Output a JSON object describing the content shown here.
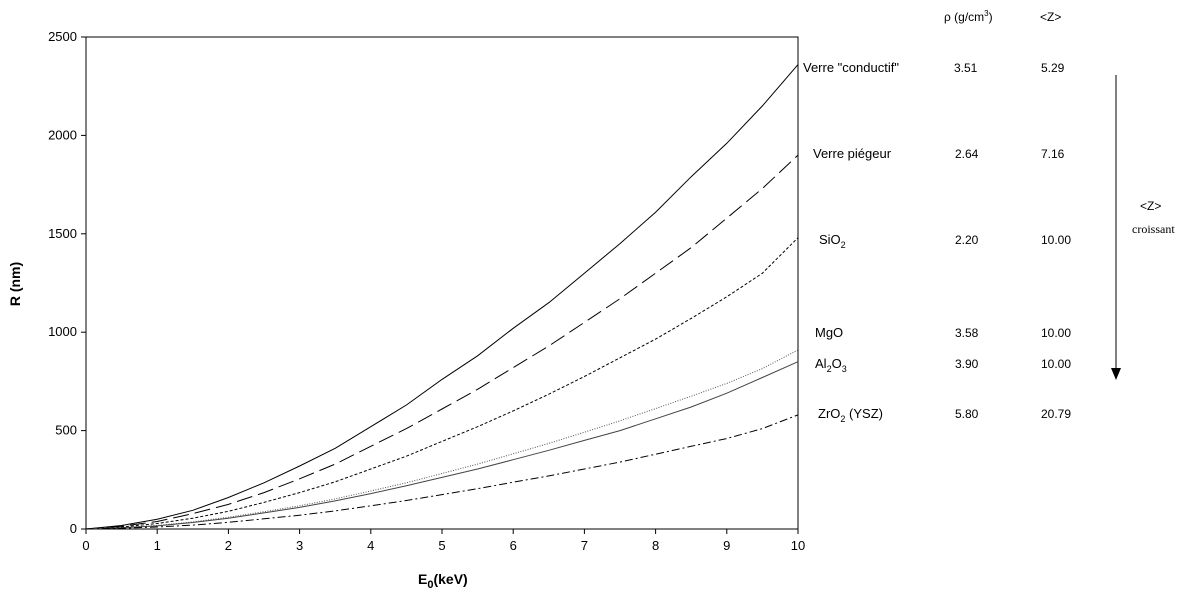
{
  "chart_data": {
    "type": "line",
    "xlabel": "E",
    "xlabel_sub": "0",
    "xlabel_unit": "(keV)",
    "ylabel": "R (nm)",
    "xlim": [
      0,
      10
    ],
    "ylim": [
      0,
      2500
    ],
    "x_ticks": [
      "0",
      "1",
      "2",
      "3",
      "4",
      "5",
      "6",
      "7",
      "8",
      "9",
      "10"
    ],
    "y_ticks": [
      "0",
      "500",
      "1000",
      "1500",
      "2000",
      "2500"
    ],
    "grid": false,
    "x": [
      0,
      0.5,
      1,
      1.5,
      2,
      2.5,
      3,
      3.5,
      4,
      4.5,
      5,
      5.5,
      6,
      6.5,
      7,
      7.5,
      8,
      8.5,
      9,
      9.5,
      10
    ],
    "series": [
      {
        "name": "Verre \"conductif\"",
        "dash": "solid",
        "values": [
          0,
          18,
          50,
          95,
          160,
          235,
          320,
          410,
          520,
          630,
          760,
          880,
          1020,
          1150,
          1300,
          1450,
          1610,
          1790,
          1960,
          2150,
          2360
        ]
      },
      {
        "name": "Verre piégeur",
        "dash": "longdash",
        "values": [
          0,
          14,
          38,
          78,
          125,
          185,
          255,
          330,
          420,
          510,
          610,
          710,
          820,
          930,
          1050,
          1170,
          1300,
          1430,
          1580,
          1730,
          1900
        ]
      },
      {
        "name": "SiO2",
        "dash": "shortdash",
        "values": [
          0,
          10,
          28,
          55,
          90,
          135,
          185,
          240,
          305,
          370,
          445,
          520,
          600,
          685,
          775,
          870,
          965,
          1070,
          1180,
          1300,
          1480
        ]
      },
      {
        "name": "MgO",
        "dash": "dotted",
        "values": [
          0,
          7,
          18,
          36,
          60,
          88,
          118,
          153,
          193,
          235,
          282,
          330,
          382,
          435,
          492,
          550,
          612,
          675,
          740,
          815,
          910
        ]
      },
      {
        "name": "Al2O3",
        "dash": "solid-grey",
        "values": [
          0,
          6,
          16,
          33,
          55,
          82,
          110,
          143,
          180,
          220,
          262,
          305,
          352,
          400,
          450,
          500,
          560,
          620,
          690,
          770,
          850
        ]
      },
      {
        "name": "ZrO2 (YSZ)",
        "dash": "dashdot",
        "values": [
          0,
          4,
          10,
          20,
          34,
          52,
          70,
          92,
          118,
          145,
          175,
          205,
          238,
          270,
          305,
          340,
          380,
          420,
          460,
          510,
          580
        ]
      }
    ]
  },
  "legend": {
    "header_rho": "ρ (g/cm",
    "header_rho_sup": "3",
    "header_rho_end": ")",
    "header_z": "<Z>",
    "rows": [
      {
        "label": "Verre \"conductif\"",
        "sub": "",
        "after": "",
        "rho": "3.51",
        "z": "5.29"
      },
      {
        "label": "Verre piégeur",
        "sub": "",
        "after": "",
        "rho": "2.64",
        "z": "7.16"
      },
      {
        "label": "SiO",
        "sub": "2",
        "after": "",
        "rho": "2.20",
        "z": "10.00"
      },
      {
        "label": "MgO",
        "sub": "",
        "after": "",
        "rho": "3.58",
        "z": "10.00"
      },
      {
        "label": "Al",
        "sub": "2",
        "after": "O3",
        "rho": "3.90",
        "z": "10.00"
      },
      {
        "label": "ZrO",
        "sub": "2",
        "after": " (YSZ)",
        "rho": "5.80",
        "z": "20.79"
      }
    ],
    "arrow_label_1": "<Z>",
    "arrow_label_2": "croissant"
  }
}
